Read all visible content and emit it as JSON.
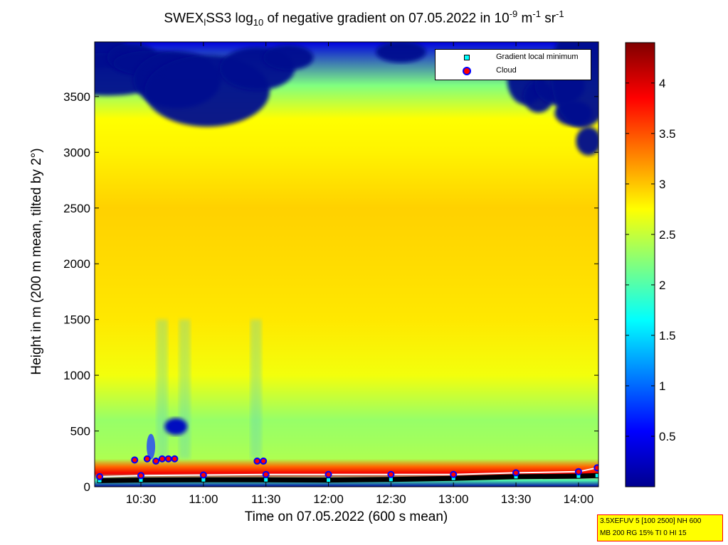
{
  "title": {
    "pre": "SWEX",
    "sub1": "l",
    "mid": "SS3 log",
    "sub2": "10",
    "post": " of negative gradient on 07.05.2022 in 10",
    "sup1": "-9",
    "unit1": " m",
    "sup2": "-1",
    "unit2": " sr",
    "sup3": "-1"
  },
  "xlabel": "Time on 07.05.2022 (600 s mean)",
  "ylabel": "Height in m (200 m mean, tilted by 2°)",
  "legend": {
    "items": [
      {
        "label": "Gradient local minimum",
        "marker": "square",
        "color": "#00ffff"
      },
      {
        "label": "Cloud",
        "marker": "circle",
        "color": "#ff0000",
        "edge": "#0000ff"
      }
    ],
    "placement": "top-right"
  },
  "infobox": {
    "line1": "3.5XEFUV 5 [100 2500] NH 600",
    "line2": "MB 200 RG 15% TI 0 HI 15"
  },
  "chart_data": {
    "type": "heatmap",
    "x_ticks": [
      "10:30",
      "11:00",
      "11:30",
      "12:00",
      "12:30",
      "13:00",
      "13:30",
      "14:00"
    ],
    "x_tick_hours": [
      10.5,
      11.0,
      11.5,
      12.0,
      12.5,
      13.0,
      13.5,
      14.0
    ],
    "xlim_hours": [
      10.13,
      14.16
    ],
    "y_ticks": [
      "0",
      "500",
      "1000",
      "1500",
      "2000",
      "2500",
      "3000",
      "3500"
    ],
    "y_tick_values": [
      0,
      500,
      1000,
      1500,
      2000,
      2500,
      3000,
      3500
    ],
    "ylim": [
      0,
      3990
    ],
    "colorbar": {
      "ticks": [
        "0.5",
        "1",
        "1.5",
        "2",
        "2.5",
        "3",
        "3.5",
        "4"
      ],
      "tick_values": [
        0.5,
        1,
        1.5,
        2,
        2.5,
        3,
        3.5,
        4
      ],
      "range": [
        0,
        4.4
      ],
      "colormap": "jet"
    },
    "profile": {
      "height_m": [
        0,
        60,
        120,
        180,
        250,
        400,
        600,
        1000,
        1500,
        2000,
        2500,
        3000,
        3300,
        3600,
        3990
      ],
      "log10_value": [
        0.1,
        2.0,
        3.9,
        3.4,
        2.4,
        2.35,
        2.3,
        2.7,
        2.85,
        2.9,
        2.95,
        2.8,
        2.75,
        2.2,
        0.4
      ]
    },
    "cloud_base_m": {
      "time_hours": [
        10.17,
        10.5,
        11.0,
        11.5,
        12.0,
        12.5,
        13.0,
        13.5,
        14.0,
        14.15
      ],
      "height_m": [
        90,
        100,
        105,
        110,
        110,
        110,
        110,
        125,
        135,
        170
      ]
    },
    "gradient_local_minimum_m": {
      "time_hours": [
        10.17,
        10.5,
        11.0,
        11.5,
        12.0,
        12.5,
        13.0,
        13.5,
        14.0,
        14.15
      ],
      "height_m": [
        55,
        60,
        62,
        62,
        60,
        65,
        75,
        90,
        95,
        100
      ]
    },
    "low_clouds": {
      "time_hours": [
        10.45,
        10.55,
        10.62,
        10.67,
        10.72,
        10.77,
        11.43,
        11.48
      ],
      "height_m": [
        240,
        250,
        230,
        250,
        250,
        250,
        230,
        230
      ]
    }
  }
}
